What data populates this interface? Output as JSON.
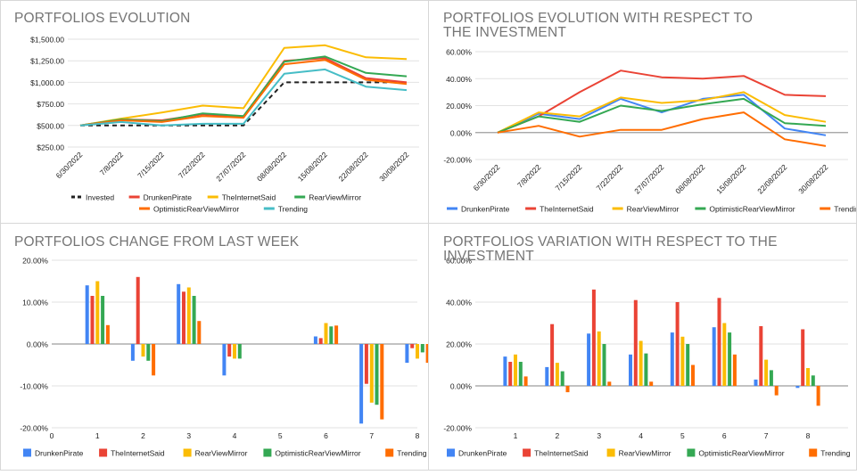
{
  "chart_data": [
    {
      "type": "line",
      "title": "PORTFOLIOS EVOLUTION",
      "x": [
        "6/30/2022",
        "7/8/2022",
        "7/15/2022",
        "7/22/2022",
        "27/07/2022",
        "08/08/2022",
        "15/08/2022",
        "22/08/2022",
        "30/08/2022"
      ],
      "ylim": [
        250,
        1500
      ],
      "yticks": [
        250,
        500,
        750,
        1000,
        1250,
        1500
      ],
      "ytick_labels": [
        "$250.00",
        "$500.00",
        "$750.00",
        "$1,000.00",
        "$1,250.00",
        "$1,500.00"
      ],
      "grid": true,
      "legend": "bottom",
      "series": [
        {
          "name": "Invested",
          "color": "#212121",
          "dashed": true,
          "values": [
            500,
            500,
            500,
            500,
            500,
            1000,
            1000,
            1000,
            1000
          ]
        },
        {
          "name": "DrunkenPirate",
          "color": "#ea4335",
          "values": [
            500,
            570,
            560,
            630,
            600,
            1250,
            1280,
            1050,
            1000
          ]
        },
        {
          "name": "TheInternetSaid",
          "color": "#fbbc04",
          "values": [
            500,
            580,
            650,
            730,
            700,
            1400,
            1430,
            1290,
            1270
          ]
        },
        {
          "name": "RearViewMirror",
          "color": "#34a853",
          "values": [
            500,
            570,
            550,
            640,
            610,
            1240,
            1300,
            1110,
            1070
          ]
        },
        {
          "name": "OptimisticRearViewMirror",
          "color": "#ff6d01",
          "values": [
            500,
            560,
            540,
            610,
            590,
            1210,
            1260,
            1030,
            980
          ]
        },
        {
          "name": "Trending",
          "color": "#46bdc6",
          "values": [
            500,
            540,
            500,
            520,
            520,
            1100,
            1150,
            950,
            910
          ]
        }
      ]
    },
    {
      "type": "line",
      "title": "PORTFOLIOS EVOLUTION WITH RESPECT TO THE INVESTMENT",
      "x": [
        "6/30/2022",
        "7/8/2022",
        "7/15/2022",
        "7/22/2022",
        "27/07/2022",
        "08/08/2022",
        "15/08/2022",
        "22/08/2022",
        "30/08/2022"
      ],
      "ylim": [
        -20,
        60
      ],
      "yticks": [
        -20,
        0,
        20,
        40,
        60
      ],
      "ytick_labels": [
        "-20.00%",
        "0.00%",
        "20.00%",
        "40.00%",
        "60.00%"
      ],
      "grid": true,
      "legend": "bottom",
      "series": [
        {
          "name": "DrunkenPirate",
          "color": "#4285f4",
          "values": [
            0,
            14,
            10,
            25,
            15,
            25,
            28,
            3,
            -2
          ]
        },
        {
          "name": "TheInternetSaid",
          "color": "#ea4335",
          "values": [
            0,
            12,
            30,
            46,
            41,
            40,
            42,
            28,
            27
          ]
        },
        {
          "name": "RearViewMirror",
          "color": "#fbbc04",
          "values": [
            0,
            15,
            12,
            26,
            22,
            24,
            30,
            13,
            8
          ]
        },
        {
          "name": "OptimisticRearViewMirror",
          "color": "#34a853",
          "values": [
            0,
            12,
            8,
            20,
            16,
            21,
            25,
            7,
            5
          ]
        },
        {
          "name": "Trending",
          "color": "#ff6d01",
          "values": [
            0,
            5,
            -3,
            2,
            2,
            10,
            15,
            -5,
            -10
          ]
        }
      ]
    },
    {
      "type": "bar",
      "title": "PORTFOLIOS CHANGE FROM LAST WEEK",
      "categories": [
        "0",
        "1",
        "2",
        "3",
        "4",
        "5",
        "6",
        "7",
        "8"
      ],
      "ylim": [
        -20,
        20
      ],
      "yticks": [
        -20,
        -10,
        0,
        10,
        20
      ],
      "ytick_labels": [
        "-20.00%",
        "-10.00%",
        "0.00%",
        "10.00%",
        "20.00%"
      ],
      "grid": true,
      "legend": "bottom",
      "series": [
        {
          "name": "DrunkenPirate",
          "color": "#4285f4",
          "values": [
            null,
            14,
            -4,
            14.3,
            -7.5,
            0,
            1.8,
            -19,
            -4.5
          ]
        },
        {
          "name": "TheInternetSaid",
          "color": "#ea4335",
          "values": [
            null,
            11.5,
            16,
            12.5,
            -3,
            0,
            1.4,
            -9.5,
            -1
          ]
        },
        {
          "name": "RearViewMirror",
          "color": "#fbbc04",
          "values": [
            null,
            15,
            -3,
            13.5,
            -3.5,
            0,
            5,
            -14,
            -3.5
          ]
        },
        {
          "name": "OptimisticRearViewMirror",
          "color": "#34a853",
          "values": [
            null,
            11.5,
            -4,
            11.5,
            -3.5,
            0,
            4.2,
            -14.5,
            -2
          ]
        },
        {
          "name": "Trending",
          "color": "#ff6d01",
          "values": [
            null,
            4.5,
            -7.5,
            5.5,
            0,
            0,
            4.4,
            -18,
            -4.5
          ]
        }
      ]
    },
    {
      "type": "bar",
      "title": "PORTFOLIOS VARIATION WITH RESPECT TO THE INVESTMENT",
      "categories": [
        "1",
        "2",
        "3",
        "4",
        "5",
        "6",
        "7",
        "8"
      ],
      "ylim": [
        -20,
        60
      ],
      "yticks": [
        -20,
        0,
        20,
        40,
        60
      ],
      "ytick_labels": [
        "-20.00%",
        "0.00%",
        "20.00%",
        "40.00%",
        "60.00%"
      ],
      "grid": true,
      "legend": "bottom",
      "series": [
        {
          "name": "DrunkenPirate",
          "color": "#4285f4",
          "values": [
            14,
            9,
            25,
            15,
            25.5,
            28,
            3,
            -1
          ]
        },
        {
          "name": "TheInternetSaid",
          "color": "#ea4335",
          "values": [
            11.5,
            29.5,
            46,
            41,
            40,
            42,
            28.5,
            27
          ]
        },
        {
          "name": "RearViewMirror",
          "color": "#fbbc04",
          "values": [
            15,
            11,
            26,
            21.5,
            23.5,
            30,
            12.5,
            8.5
          ]
        },
        {
          "name": "OptimisticRearViewMirror",
          "color": "#34a853",
          "values": [
            11.5,
            7,
            20,
            15.5,
            20,
            25.5,
            7.5,
            5
          ]
        },
        {
          "name": "Trending",
          "color": "#ff6d01",
          "values": [
            4.5,
            -3,
            2,
            2,
            10,
            15,
            -4.5,
            -9.5
          ]
        }
      ]
    }
  ]
}
